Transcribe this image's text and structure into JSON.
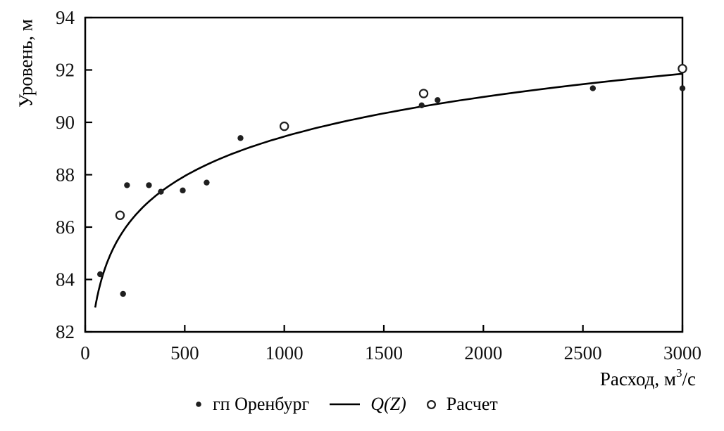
{
  "chart_data": {
    "type": "scatter",
    "title": "",
    "ylabel": "Уровень, м",
    "xlabel": "Расход, м3/с",
    "xlabel_parts": {
      "pre": "Расход, м",
      "sup": "3",
      "post": "/с"
    },
    "xlim": [
      0,
      3000
    ],
    "ylim": [
      82,
      94
    ],
    "xticks": [
      0,
      500,
      1000,
      1500,
      2000,
      2500,
      3000
    ],
    "yticks": [
      82,
      84,
      86,
      88,
      90,
      92,
      94
    ],
    "grid": false,
    "legend_position": "bottom-center",
    "series": [
      {
        "name": "гп Оренбург",
        "marker": "filled-dot",
        "points": [
          [
            75,
            84.2
          ],
          [
            190,
            83.45
          ],
          [
            210,
            87.6
          ],
          [
            320,
            87.6
          ],
          [
            380,
            87.35
          ],
          [
            490,
            87.4
          ],
          [
            610,
            87.7
          ],
          [
            780,
            89.4
          ],
          [
            1690,
            90.65
          ],
          [
            1770,
            90.85
          ],
          [
            2550,
            91.3
          ],
          [
            3000,
            91.3
          ]
        ]
      },
      {
        "name": "Расчет",
        "marker": "open-circle",
        "points": [
          [
            175,
            86.45
          ],
          [
            1000,
            89.85
          ],
          [
            1700,
            91.1
          ],
          [
            3000,
            92.05
          ]
        ]
      }
    ],
    "curve": {
      "name": "Q(Z)",
      "model": "Z = a + b·ln(Q)",
      "a": 74.4,
      "b": 2.18,
      "q_start": 50,
      "q_end": 3000
    },
    "legend": [
      {
        "marker": "filled-dot",
        "label": "гп Оренбург"
      },
      {
        "marker": "line",
        "label": "Q(Z)"
      },
      {
        "marker": "open-circle",
        "label": "Расчет"
      }
    ],
    "colors": {
      "line": "#000000",
      "marker": "#1f1f1f",
      "text": "#111111",
      "background": "#ffffff"
    }
  }
}
